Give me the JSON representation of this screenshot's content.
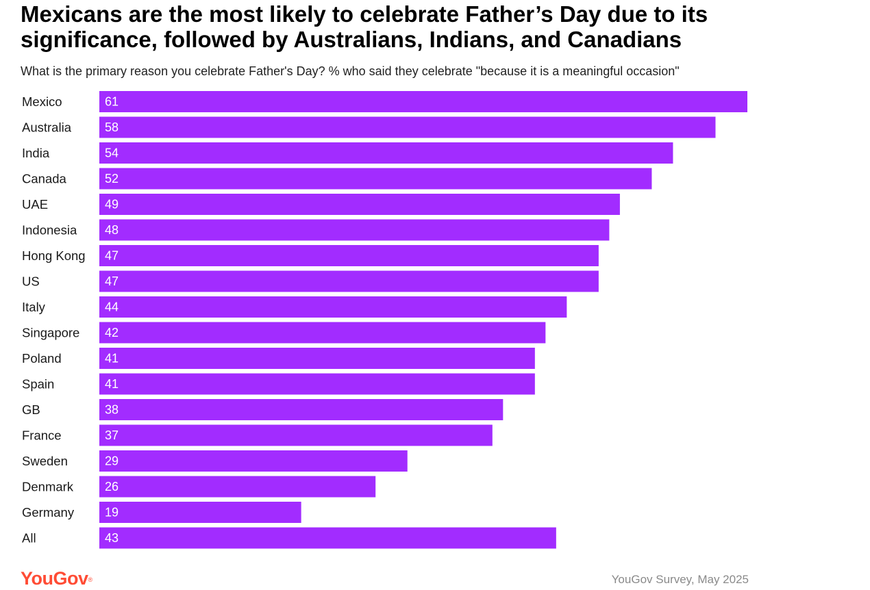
{
  "header": {
    "title": "Mexicans are the most likely to celebrate Father’s Day due to its significance, followed by Australians, Indians, and Canadians",
    "subtitle": "What is the primary reason you celebrate Father's Day? % who said they celebrate \"because it is a meaningful occasion\""
  },
  "colors": {
    "bar": "#a22cff",
    "logo": "#ff4c35",
    "source_text": "#8a8a8a"
  },
  "chart_data": {
    "type": "bar",
    "orientation": "horizontal",
    "title": "Mexicans are the most likely to celebrate Father’s Day due to its significance, followed by Australians, Indians, and Canadians",
    "subtitle": "What is the primary reason you celebrate Father's Day? % who said they celebrate \"because it is a meaningful occasion\"",
    "xlabel": "",
    "ylabel": "",
    "xlim": [
      0,
      61
    ],
    "grid": false,
    "legend": "none",
    "categories": [
      "Mexico",
      "Australia",
      "India",
      "Canada",
      "UAE",
      "Indonesia",
      "Hong Kong",
      "US",
      "Italy",
      "Singapore",
      "Poland",
      "Spain",
      "GB",
      "France",
      "Sweden",
      "Denmark",
      "Germany",
      "All"
    ],
    "values": [
      61,
      58,
      54,
      52,
      49,
      48,
      47,
      47,
      44,
      42,
      41,
      41,
      38,
      37,
      29,
      26,
      19,
      43
    ]
  },
  "footer": {
    "logo_text": "YouGov",
    "logo_mark": "®",
    "source": "YouGov Survey, May 2025"
  }
}
